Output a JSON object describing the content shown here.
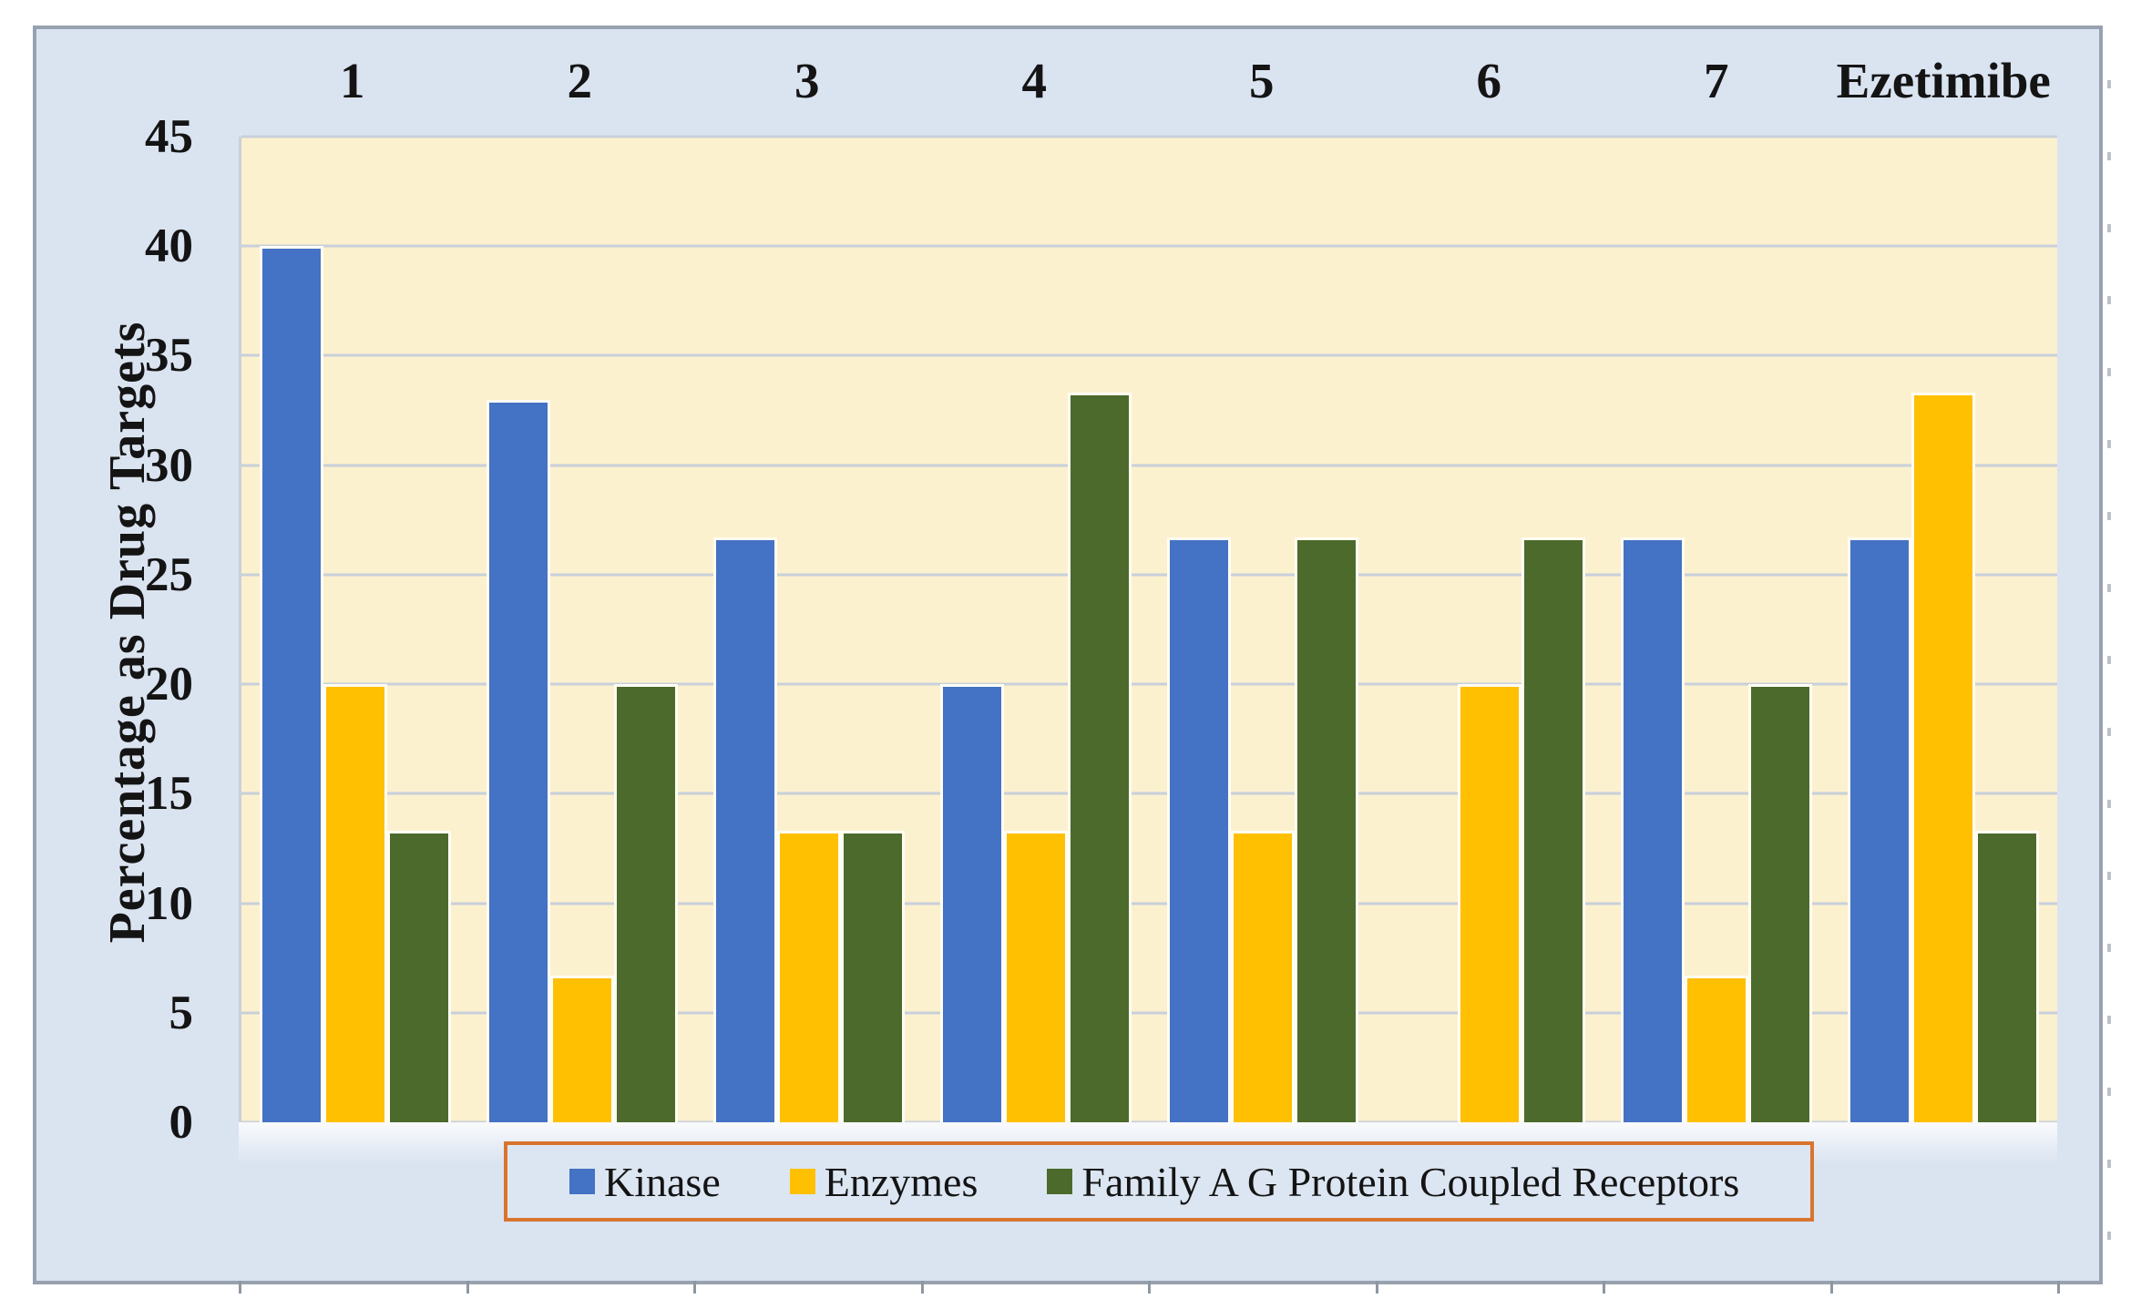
{
  "chart_data": {
    "type": "bar",
    "title": "",
    "categories": [
      "1",
      "2",
      "3",
      "4",
      "5",
      "6",
      "7",
      "Ezetimibe"
    ],
    "series": [
      {
        "name": "Kinase",
        "color": "#4472c4",
        "values": [
          40,
          33,
          26.7,
          20,
          26.7,
          0,
          26.7,
          26.7
        ]
      },
      {
        "name": "Enzymes",
        "color": "#fec001",
        "values": [
          20,
          6.7,
          13.3,
          13.3,
          13.3,
          20,
          6.7,
          33.3
        ]
      },
      {
        "name": "Family A G Protein Coupled Receptors",
        "color": "#4c6a2b",
        "values": [
          13.3,
          20,
          13.3,
          33.3,
          26.7,
          26.7,
          20,
          13.3
        ]
      }
    ],
    "xlabel": "",
    "ylabel": "Percentage as Drug Targets",
    "ylim": [
      0,
      45
    ],
    "yticks": [
      45,
      40,
      35,
      30,
      25,
      20,
      15,
      10,
      5,
      0
    ],
    "grid": true,
    "legend_position": "bottom"
  },
  "colors": {
    "frame_background": "#dae3f0",
    "plot_background": "#fcf1cf",
    "gridline": "#c9d0da",
    "frame_border": "#97a1af",
    "legend_border": "#d9742f",
    "text": "#141414"
  }
}
